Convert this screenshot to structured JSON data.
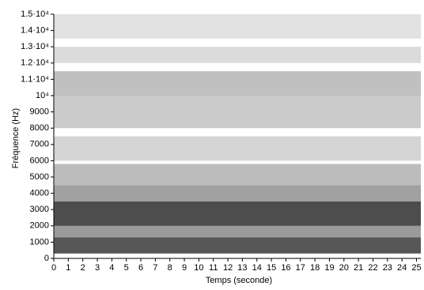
{
  "chart_data": {
    "type": "spectrogram",
    "x_label": "Temps (seconde)",
    "y_label": "Fréquence (Hz)",
    "xlim": [
      0,
      25.3
    ],
    "xticks": [
      0,
      1,
      2,
      3,
      4,
      5,
      6,
      7,
      8,
      9,
      10,
      11,
      12,
      13,
      14,
      15,
      16,
      17,
      18,
      19,
      20,
      21,
      22,
      23,
      24,
      25
    ],
    "ylim": [
      0,
      15000
    ],
    "yticks": [
      0,
      1000,
      2000,
      3000,
      4000,
      5000,
      6000,
      7000,
      8000,
      9000,
      {
        "value": 10000,
        "label": "10⁴"
      },
      {
        "value": 11000,
        "label": "1.1·10⁴"
      },
      {
        "value": 12000,
        "label": "1.2·10⁴"
      },
      {
        "value": 13000,
        "label": "1.3·10⁴"
      },
      {
        "value": 14000,
        "label": "1.4·10⁴"
      },
      {
        "value": 15000,
        "label": "1.5·10⁴"
      }
    ],
    "bands": [
      {
        "range": [
          300,
          1300
        ],
        "color": "#3a3a3a"
      },
      {
        "range": [
          1300,
          2000
        ],
        "color": "#8a8a8a"
      },
      {
        "range": [
          2000,
          3500
        ],
        "color": "#2e2e2e"
      },
      {
        "range": [
          3500,
          4500
        ],
        "color": "#8f8f8f"
      },
      {
        "range": [
          4500,
          5800
        ],
        "color": "#b0b0b0"
      },
      {
        "range": [
          6000,
          7500
        ],
        "color": "#cdcdcd"
      },
      {
        "range": [
          8000,
          10000
        ],
        "color": "#c2c2c2"
      },
      {
        "range": [
          10000,
          11500
        ],
        "color": "#b5b5b5"
      },
      {
        "range": [
          12000,
          13000
        ],
        "color": "#d5d5d5"
      },
      {
        "range": [
          13500,
          15000
        ],
        "color": "#dcdcdc"
      }
    ]
  }
}
